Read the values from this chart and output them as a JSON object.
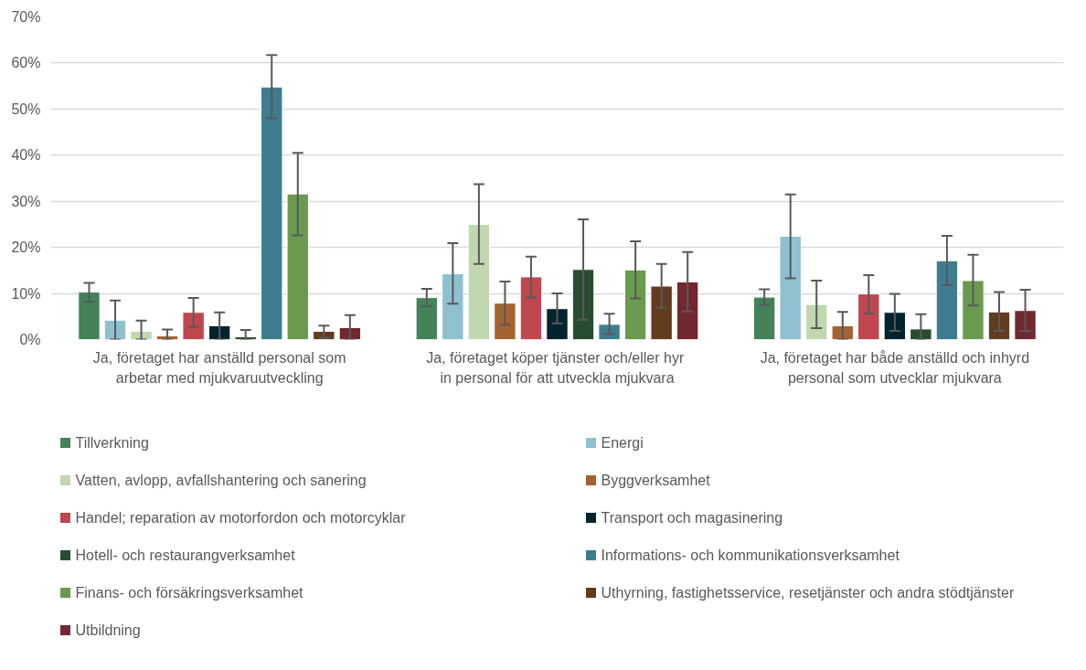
{
  "chart_data": {
    "type": "bar",
    "categories": [
      "Ja, företaget har anställd personal som\narbetar med mjukvaruutveckling",
      "Ja, företaget  köper tjänster och/eller hyr\nin personal för att utveckla mjukvara",
      "Ja, företaget har både anställd och inhyrd\npersonal som utvecklar mjukvara"
    ],
    "ylim": [
      0,
      70
    ],
    "yticks": [
      {
        "value": 0,
        "label": "0%"
      },
      {
        "value": 10,
        "label": "10%"
      },
      {
        "value": 20,
        "label": "20%"
      },
      {
        "value": 30,
        "label": "30%"
      },
      {
        "value": 40,
        "label": "40%"
      },
      {
        "value": 50,
        "label": "50%"
      },
      {
        "value": 60,
        "label": "60%"
      },
      {
        "value": 70,
        "label": "70%"
      }
    ],
    "grid": "y",
    "legend": "bottom",
    "series": [
      {
        "name": "Tillverkning",
        "color": "#44825a",
        "values": [
          10.3,
          9.1,
          9.2
        ],
        "errors": [
          [
            8.2,
            12.3
          ],
          [
            7.2,
            11.0
          ],
          [
            7.5,
            10.9
          ]
        ]
      },
      {
        "name": "Energi",
        "color": "#8fc0d0",
        "values": [
          4.2,
          14.3,
          22.4
        ],
        "errors": [
          [
            0,
            8.5
          ],
          [
            7.8,
            20.9
          ],
          [
            13.3,
            31.5
          ]
        ]
      },
      {
        "name": "Vatten, avlopp, avfallshantering och sanering",
        "color": "#c0d7b0",
        "values": [
          1.8,
          25.0,
          7.6
        ],
        "errors": [
          [
            0,
            4.1
          ],
          [
            16.4,
            33.7
          ],
          [
            2.5,
            12.8
          ]
        ]
      },
      {
        "name": "Byggverksamhet",
        "color": "#a66332",
        "values": [
          0.8,
          7.9,
          3.0
        ],
        "errors": [
          [
            0,
            2.2
          ],
          [
            3.2,
            12.6
          ],
          [
            0,
            6.0
          ]
        ]
      },
      {
        "name": "Handel; reparation av motorfordon och motorcyklar",
        "color": "#c0474f",
        "values": [
          5.9,
          13.6,
          9.9
        ],
        "errors": [
          [
            2.8,
            9.0
          ],
          [
            9.1,
            18.0
          ],
          [
            5.7,
            14.0
          ]
        ]
      },
      {
        "name": "Transport och magasinering",
        "color": "#00242d",
        "values": [
          3.0,
          6.7,
          5.9
        ],
        "errors": [
          [
            0,
            5.9
          ],
          [
            3.5,
            10.0
          ],
          [
            1.9,
            9.9
          ]
        ]
      },
      {
        "name": "Hotell- och restaurangverksamhet",
        "color": "#284c30",
        "values": [
          0.6,
          15.2,
          2.3
        ],
        "errors": [
          [
            0,
            2.1
          ],
          [
            4.3,
            26.1
          ],
          [
            0,
            5.5
          ]
        ]
      },
      {
        "name": "Informations- och kommunikationsverksamhet",
        "color": "#3e7d90",
        "values": [
          54.8,
          3.3,
          17.1
        ],
        "errors": [
          [
            48.0,
            61.7
          ],
          [
            1.2,
            5.6
          ],
          [
            11.8,
            22.5
          ]
        ]
      },
      {
        "name": "Finans- och försäkringsverksamhet",
        "color": "#6a9a4e",
        "values": [
          31.6,
          15.1,
          12.8
        ],
        "errors": [
          [
            22.6,
            40.5
          ],
          [
            8.9,
            21.3
          ],
          [
            7.4,
            18.4
          ]
        ]
      },
      {
        "name": "Uthyrning, fastighetsservice, resetjänster och andra stödtjänster",
        "color": "#633b1f",
        "values": [
          1.8,
          11.6,
          6.0
        ],
        "errors": [
          [
            0.4,
            3.0
          ],
          [
            6.9,
            16.4
          ],
          [
            1.9,
            10.3
          ]
        ]
      },
      {
        "name": "Utbildning",
        "color": "#722830",
        "values": [
          2.6,
          12.5,
          6.3
        ],
        "errors": [
          [
            0,
            5.3
          ],
          [
            6.1,
            19.0
          ],
          [
            1.9,
            10.8
          ]
        ]
      }
    ]
  }
}
